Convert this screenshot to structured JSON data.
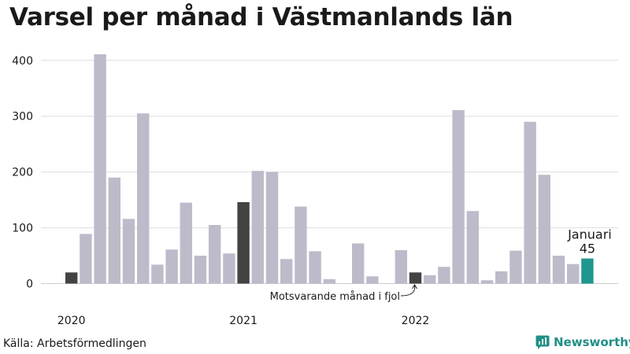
{
  "header": {
    "title": "Varsel per månad i Västmanlands län"
  },
  "footer": {
    "source": "Källa: Arbetsförmedlingen",
    "brand": "Newsworthy"
  },
  "colors": {
    "bar": "#bdbbca",
    "highlight": "#434343",
    "current": "#1f968e",
    "grid": "#dddddd"
  },
  "chart_data": {
    "type": "bar",
    "title": "Varsel per månad i Västmanlands län",
    "xlabel": "",
    "ylabel": "",
    "ylim": [
      0,
      420
    ],
    "yticks": [
      0,
      100,
      200,
      300,
      400
    ],
    "year_labels": [
      {
        "label": "2020",
        "index": 0
      },
      {
        "label": "2021",
        "index": 12
      },
      {
        "label": "2022",
        "index": 24
      }
    ],
    "categories": [
      "2020-01",
      "2020-02",
      "2020-03",
      "2020-04",
      "2020-05",
      "2020-06",
      "2020-07",
      "2020-08",
      "2020-09",
      "2020-10",
      "2020-11",
      "2020-12",
      "2021-01",
      "2021-02",
      "2021-03",
      "2021-04",
      "2021-05",
      "2021-06",
      "2021-07",
      "2021-08",
      "2021-09",
      "2021-10",
      "2021-11",
      "2021-12",
      "2022-01",
      "2022-02",
      "2022-03",
      "2022-04",
      "2022-05",
      "2022-06",
      "2022-07",
      "2022-08",
      "2022-09",
      "2022-10",
      "2022-11",
      "2022-12",
      "2023-01"
    ],
    "values": [
      20,
      89,
      411,
      190,
      116,
      305,
      34,
      61,
      145,
      50,
      105,
      54,
      146,
      202,
      200,
      44,
      138,
      58,
      8,
      0,
      72,
      13,
      0,
      60,
      20,
      15,
      30,
      311,
      130,
      6,
      22,
      59,
      290,
      195,
      50,
      35,
      45
    ],
    "highlight_indices": [
      0,
      12,
      24
    ],
    "current_index": 36,
    "annotations": {
      "previous_year": "Motsvarande månad i fjol",
      "current_month": "Januari",
      "current_value": "45"
    }
  }
}
